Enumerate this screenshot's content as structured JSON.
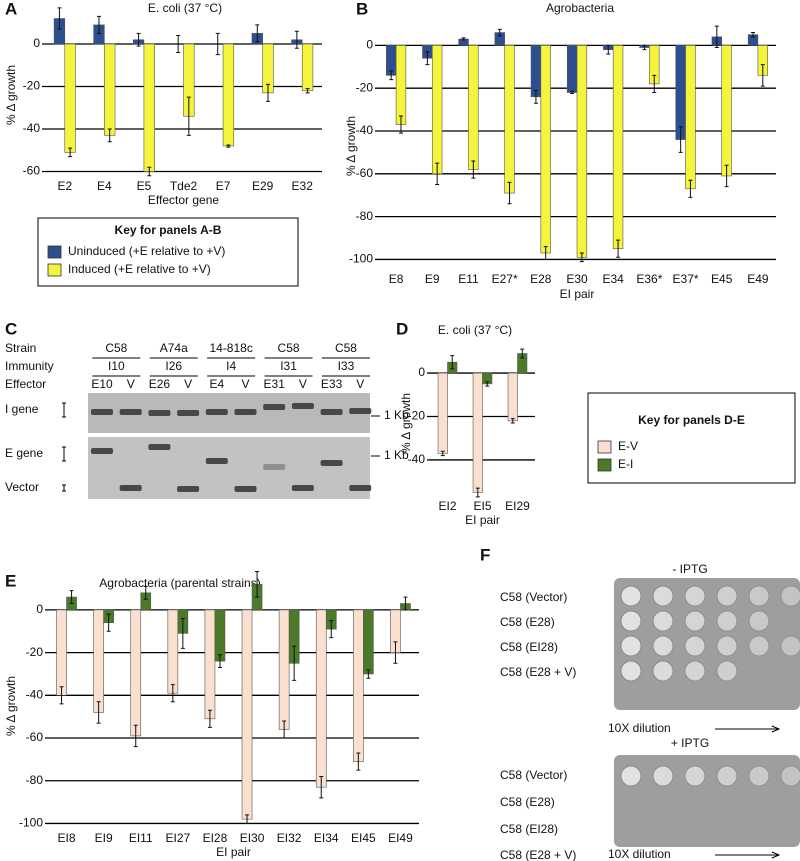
{
  "chart_data": [
    {
      "type": "bar",
      "panel_label": "A",
      "title": "E. coli (37 °C)",
      "ylabel": "% Δ growth",
      "xlabel": "Effector gene",
      "categories": [
        "E2",
        "E4",
        "E5",
        "Tde2",
        "E7",
        "E29",
        "E32"
      ],
      "series": [
        {
          "name": "Uninduced (+E relative to +V)",
          "color": "#2e4f8f",
          "values": [
            12,
            9,
            2,
            0,
            0,
            5,
            2
          ],
          "errors": [
            5,
            4,
            3,
            4,
            5,
            4,
            4
          ]
        },
        {
          "name": "Induced (+E relative to +V)",
          "color": "#f4f43c",
          "values": [
            -51,
            -43,
            -60,
            -34,
            -48,
            -23,
            -22
          ],
          "errors": [
            2,
            3,
            2,
            9,
            0.5,
            4,
            1
          ]
        }
      ],
      "ylim": [
        -64,
        16
      ],
      "yticks": [
        0,
        -20,
        -40,
        -60
      ],
      "grid": true,
      "legend_title": "Key for panels A-B"
    },
    {
      "type": "bar",
      "panel_label": "B",
      "title": "Agrobacteria",
      "ylabel": "% Δ growth",
      "xlabel": "EI pair",
      "categories": [
        "E8",
        "E9",
        "E11",
        "E27*",
        "E28",
        "E30",
        "E34",
        "E36*",
        "E37*",
        "E45",
        "E49"
      ],
      "series": [
        {
          "color": "#2e4f8f",
          "values": [
            -14,
            -6,
            3,
            6,
            -24,
            -22,
            -2,
            -1,
            -44,
            4,
            5
          ],
          "errors": [
            2,
            3,
            0.5,
            1.5,
            3,
            0.5,
            2,
            1,
            6,
            5,
            1
          ]
        },
        {
          "color": "#f4f43c",
          "values": [
            -37,
            -60,
            -58,
            -69,
            -97,
            -99,
            -95,
            -18,
            -67,
            -61,
            -14
          ],
          "errors": [
            4,
            5,
            4,
            5,
            3,
            2,
            4,
            4,
            4,
            5,
            5
          ]
        }
      ],
      "ylim": [
        -104,
        10
      ],
      "yticks": [
        0,
        -20,
        -40,
        -60,
        -80,
        -100
      ],
      "grid": true
    },
    {
      "type": "bar",
      "panel_label": "D",
      "title": "E. coli (37 °C)",
      "ylabel": "% Δ growth",
      "xlabel": "EI pair",
      "categories": [
        "EI2",
        "EI5",
        "EI29"
      ],
      "series": [
        {
          "name": "E-V",
          "color": "#fbe0d0",
          "values": [
            -37,
            -55,
            -22
          ],
          "errors": [
            1,
            2,
            1
          ]
        },
        {
          "name": "E-I",
          "color": "#4b7a28",
          "values": [
            5,
            -5,
            9
          ],
          "errors": [
            3,
            1,
            2
          ]
        }
      ],
      "ylim": [
        -58,
        12
      ],
      "yticks": [
        0,
        -20,
        -40
      ],
      "grid": true,
      "legend_title": "Key for panels D-E"
    },
    {
      "type": "bar",
      "panel_label": "E",
      "title": "Agrobacteria (parental strains)",
      "ylabel": "% Δ growth",
      "xlabel": "EI pair",
      "categories": [
        "EI8",
        "EI9",
        "EI11",
        "EI27",
        "EI28",
        "EI30",
        "EI32",
        "EI34",
        "EI45",
        "EI49"
      ],
      "series": [
        {
          "color": "#fbe0d0",
          "values": [
            -40,
            -48,
            -59,
            -39,
            -51,
            -98,
            -56,
            -83,
            -71,
            -20
          ],
          "errors": [
            4,
            5,
            5,
            4,
            4,
            2,
            4,
            5,
            4,
            5
          ]
        },
        {
          "color": "#4b7a28",
          "values": [
            6,
            -6,
            8,
            -11,
            -24,
            12,
            -25,
            -9,
            -30,
            3
          ],
          "errors": [
            3,
            4,
            3,
            7,
            3,
            6,
            8,
            4,
            2,
            3
          ]
        }
      ],
      "ylim": [
        -104,
        14
      ],
      "yticks": [
        0,
        -20,
        -40,
        -60,
        -80,
        -100
      ],
      "grid": true
    }
  ],
  "gel": {
    "panel_label": "C",
    "row_headers": [
      "Strain",
      "Immunity",
      "Effector"
    ],
    "strains": [
      "C58",
      "A74a",
      "14-818c",
      "C58",
      "C58"
    ],
    "immunity": [
      "I10",
      "I26",
      "I4",
      "I31",
      "I33"
    ],
    "effectors": [
      "E10",
      "V",
      "E26",
      "V",
      "E4",
      "V",
      "E31",
      "V",
      "E33",
      "V"
    ],
    "gene_labels": [
      "I gene",
      "E gene",
      "Vector"
    ],
    "size_markers": [
      "1 Kb",
      "1 Kb"
    ]
  },
  "plates": {
    "panel_label": "F",
    "conditions": [
      {
        "title": "- IPTG",
        "rows": [
          "C58 (Vector)",
          "C58 (E28)",
          "C58 (EI28)",
          "C58 (E28 + V)"
        ],
        "dilution": "10X dilution"
      },
      {
        "title": "+ IPTG",
        "rows": [
          "C58 (Vector)",
          "C58 (E28)",
          "C58 (EI28)",
          "C58 (E28 + V)"
        ],
        "dilution": "10X dilution"
      }
    ]
  }
}
